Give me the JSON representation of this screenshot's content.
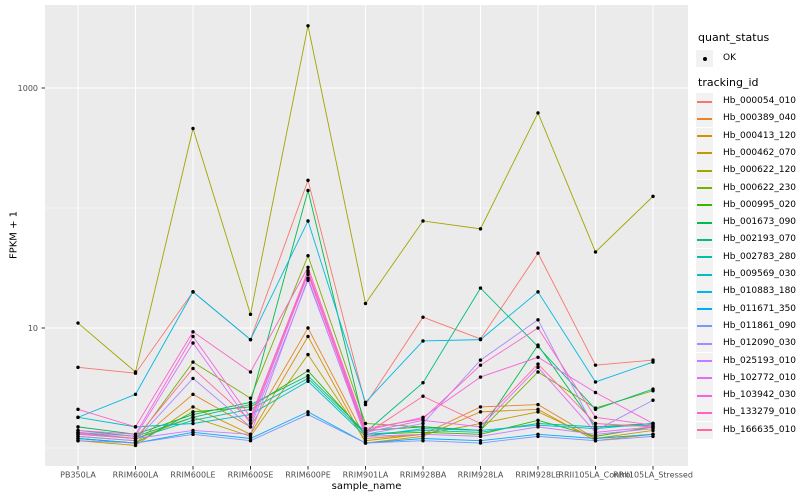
{
  "chart_data": {
    "type": "line",
    "xlabel": "sample_name",
    "ylabel": "FPKM + 1",
    "y_scale": "log10",
    "ylim": [
      1,
      4700
    ],
    "y_major_ticks": [
      10,
      1000
    ],
    "y_minor_gridlines": [
      1,
      100
    ],
    "grid": "on",
    "legend_position": "right",
    "panel_bg": "#EBEBEB",
    "gridline_color": "#FFFFFF",
    "tick_color": "#333333",
    "tick_label_color": "#4D4D4D",
    "point_color": "#000000",
    "categories": [
      "PB350LA",
      "RRIM600LA",
      "RRIM600LE",
      "RRIM600SE",
      "RRIM600PE",
      "RRIM901LA",
      "RRIM928BA",
      "RRIM928LA",
      "RRIM928LE",
      "RRII105LA_Control",
      "RRII105LA_Stressed"
    ],
    "legend": {
      "quant_status": {
        "title": "quant_status",
        "items": [
          {
            "label": "OK",
            "marker": "point",
            "color": "#000000"
          }
        ]
      },
      "tracking": {
        "title": "tracking_id"
      }
    },
    "series": [
      {
        "name": "Hb_000054_010",
        "color": "#F8766D",
        "values": [
          4.7,
          4.2,
          20,
          8,
          170,
          2.3,
          12.3,
          8.1,
          42,
          4.9,
          5.4
        ]
      },
      {
        "name": "Hb_000389_040",
        "color": "#E88526",
        "values": [
          1.2,
          1.1,
          2.8,
          1.5,
          10,
          1.2,
          1.3,
          2.2,
          2.3,
          1.2,
          1.3
        ]
      },
      {
        "name": "Hb_000413_120",
        "color": "#D39200",
        "values": [
          1.15,
          1.05,
          2.2,
          1.3,
          8.5,
          1.1,
          1.25,
          2.0,
          2.1,
          1.15,
          1.3
        ]
      },
      {
        "name": "Hb_000462_070",
        "color": "#BE9C00",
        "values": [
          1.3,
          1.2,
          1.8,
          1.25,
          6.0,
          1.15,
          1.3,
          1.6,
          2.0,
          1.2,
          1.4
        ]
      },
      {
        "name": "Hb_000622_120",
        "color": "#A3A500",
        "values": [
          11,
          4.3,
          460,
          13,
          3300,
          16,
          78,
          67,
          620,
          43,
          125
        ]
      },
      {
        "name": "Hb_000622_230",
        "color": "#7CAE00",
        "values": [
          1.25,
          1.15,
          5.2,
          2.6,
          40,
          1.6,
          1.5,
          1.4,
          4.3,
          2.15,
          3.0
        ]
      },
      {
        "name": "Hb_000995_020",
        "color": "#39B600",
        "values": [
          1.2,
          1.1,
          2.0,
          2.2,
          4.4,
          1.3,
          1.35,
          1.3,
          1.7,
          1.25,
          1.5
        ]
      },
      {
        "name": "Hb_001673_090",
        "color": "#00BB4E",
        "values": [
          1.5,
          1.3,
          1.9,
          2.4,
          140,
          1.4,
          1.5,
          1.4,
          7.2,
          1.5,
          1.6
        ]
      },
      {
        "name": "Hb_002193_070",
        "color": "#00BF7D",
        "values": [
          1.4,
          1.25,
          1.8,
          2.3,
          4.0,
          1.35,
          3.5,
          21.5,
          7.0,
          2.1,
          3.1
        ]
      },
      {
        "name": "Hb_002783_280",
        "color": "#00C1A7",
        "values": [
          1.35,
          1.2,
          1.7,
          2.1,
          3.8,
          1.3,
          1.4,
          1.35,
          1.6,
          1.5,
          1.55
        ]
      },
      {
        "name": "Hb_009569_030",
        "color": "#00BFC4",
        "values": [
          1.8,
          1.5,
          1.6,
          1.9,
          3.6,
          1.25,
          1.45,
          1.4,
          1.55,
          1.45,
          1.6
        ]
      },
      {
        "name": "Hb_010883_180",
        "color": "#00B8E5",
        "values": [
          1.8,
          2.8,
          20,
          8,
          78,
          2.4,
          7.8,
          8.0,
          20,
          3.55,
          5.2
        ]
      },
      {
        "name": "Hb_011671_350",
        "color": "#00ACFC",
        "values": [
          1.2,
          1.1,
          1.35,
          1.2,
          2.0,
          1.1,
          1.2,
          1.15,
          1.3,
          1.2,
          1.3
        ]
      },
      {
        "name": "Hb_011861_090",
        "color": "#7997FF",
        "values": [
          1.15,
          1.1,
          1.3,
          1.15,
          1.9,
          1.1,
          1.15,
          1.1,
          1.25,
          1.15,
          1.25
        ]
      },
      {
        "name": "Hb_012090_030",
        "color": "#AC88FF",
        "values": [
          1.25,
          1.15,
          3.8,
          1.5,
          25,
          1.3,
          1.6,
          5.4,
          11.7,
          1.4,
          2.5
        ]
      },
      {
        "name": "Hb_025193_010",
        "color": "#C77CFF",
        "values": [
          1.3,
          1.2,
          1.4,
          1.3,
          26,
          1.25,
          1.3,
          1.25,
          1.5,
          1.3,
          1.45
        ]
      },
      {
        "name": "Hb_102772_010",
        "color": "#E26EF7",
        "values": [
          1.35,
          1.25,
          7.5,
          1.6,
          28,
          1.35,
          1.7,
          1.5,
          4.7,
          1.35,
          1.5
        ]
      },
      {
        "name": "Hb_103942_030",
        "color": "#F763E0",
        "values": [
          1.4,
          1.3,
          8.5,
          1.8,
          30,
          1.4,
          1.8,
          3.9,
          5.7,
          2.9,
          1.6
        ]
      },
      {
        "name": "Hb_133279_010",
        "color": "#FF61C9",
        "values": [
          2.1,
          1.5,
          9.3,
          4.3,
          32,
          1.45,
          1.75,
          4.9,
          10,
          1.8,
          1.55
        ]
      },
      {
        "name": "Hb_166635_010",
        "color": "#FF6B9C",
        "values": [
          1.33,
          1.2,
          4.6,
          1.7,
          29,
          1.3,
          2.7,
          1.6,
          5.0,
          1.6,
          1.5
        ]
      }
    ]
  }
}
